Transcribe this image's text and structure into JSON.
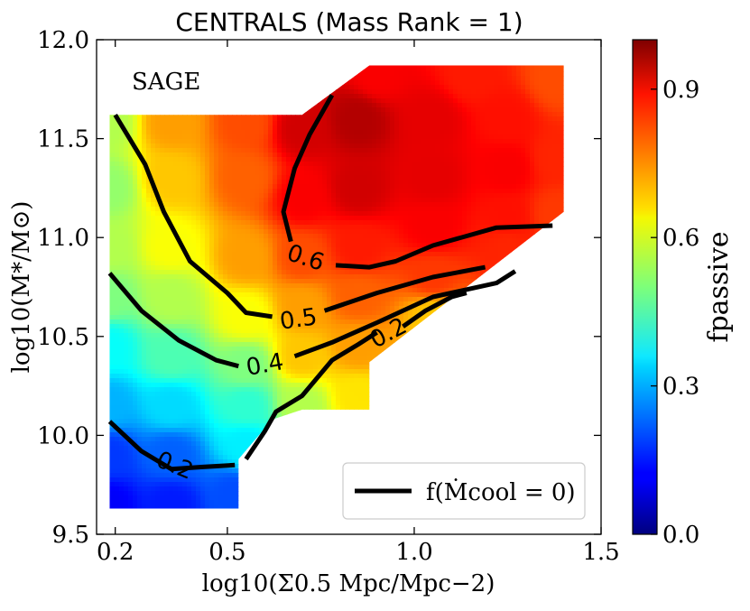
{
  "chart_data": {
    "type": "heatmap",
    "title": "CENTRALS (Mass Rank = 1)",
    "annotation": "SAGE",
    "xlabel": "log10(Σ0.5 Mpc/Mpc−2)",
    "ylabel": "log10(M*/M⊙)",
    "colorbar_label": "fpassive",
    "xlim": [
      0.15,
      1.5
    ],
    "ylim": [
      9.5,
      12.0
    ],
    "x_ticks": [
      0.2,
      0.5,
      1.0,
      1.5
    ],
    "x_tick_labels": [
      "0.2",
      "0.5",
      "1.0",
      "1.5"
    ],
    "y_ticks": [
      9.5,
      10.0,
      10.5,
      11.0,
      11.5,
      12.0
    ],
    "y_tick_labels": [
      "9.5",
      "10.0",
      "10.5",
      "11.0",
      "11.5",
      "12.0"
    ],
    "colorbar_range": [
      0.0,
      1.0
    ],
    "colorbar_ticks": [
      0.0,
      0.3,
      0.6,
      0.9
    ],
    "colorbar_tick_labels": [
      "0.0",
      "0.3",
      "0.6",
      "0.9"
    ],
    "colormap": "jet",
    "field_points": [
      {
        "x": 0.18,
        "y": 9.65,
        "v": 0.12
      },
      {
        "x": 0.35,
        "y": 9.65,
        "v": 0.15
      },
      {
        "x": 0.52,
        "y": 9.7,
        "v": 0.2
      },
      {
        "x": 0.18,
        "y": 9.9,
        "v": 0.18
      },
      {
        "x": 0.35,
        "y": 9.9,
        "v": 0.22
      },
      {
        "x": 0.55,
        "y": 9.95,
        "v": 0.36
      },
      {
        "x": 0.18,
        "y": 10.15,
        "v": 0.3
      },
      {
        "x": 0.35,
        "y": 10.15,
        "v": 0.34
      },
      {
        "x": 0.55,
        "y": 10.15,
        "v": 0.42
      },
      {
        "x": 0.18,
        "y": 10.45,
        "v": 0.38
      },
      {
        "x": 0.35,
        "y": 10.4,
        "v": 0.45
      },
      {
        "x": 0.55,
        "y": 10.35,
        "v": 0.5
      },
      {
        "x": 0.18,
        "y": 10.7,
        "v": 0.5
      },
      {
        "x": 0.35,
        "y": 10.7,
        "v": 0.55
      },
      {
        "x": 0.55,
        "y": 10.6,
        "v": 0.62
      },
      {
        "x": 0.18,
        "y": 10.95,
        "v": 0.55
      },
      {
        "x": 0.35,
        "y": 10.95,
        "v": 0.62
      },
      {
        "x": 0.55,
        "y": 10.9,
        "v": 0.72
      },
      {
        "x": 0.18,
        "y": 11.25,
        "v": 0.52
      },
      {
        "x": 0.35,
        "y": 11.3,
        "v": 0.68
      },
      {
        "x": 0.55,
        "y": 11.3,
        "v": 0.78
      },
      {
        "x": 0.18,
        "y": 11.58,
        "v": 0.55
      },
      {
        "x": 0.35,
        "y": 11.58,
        "v": 0.72
      },
      {
        "x": 0.55,
        "y": 11.58,
        "v": 0.8
      },
      {
        "x": 0.7,
        "y": 10.15,
        "v": 0.55
      },
      {
        "x": 0.85,
        "y": 10.2,
        "v": 0.65
      },
      {
        "x": 0.7,
        "y": 10.4,
        "v": 0.68
      },
      {
        "x": 0.85,
        "y": 10.45,
        "v": 0.72
      },
      {
        "x": 1.05,
        "y": 10.6,
        "v": 0.68
      },
      {
        "x": 0.7,
        "y": 10.65,
        "v": 0.72
      },
      {
        "x": 0.85,
        "y": 10.7,
        "v": 0.78
      },
      {
        "x": 1.05,
        "y": 10.8,
        "v": 0.82
      },
      {
        "x": 1.25,
        "y": 10.95,
        "v": 0.84
      },
      {
        "x": 0.7,
        "y": 10.9,
        "v": 0.8
      },
      {
        "x": 0.85,
        "y": 10.95,
        "v": 0.85
      },
      {
        "x": 1.05,
        "y": 11.05,
        "v": 0.88
      },
      {
        "x": 1.25,
        "y": 11.1,
        "v": 0.86
      },
      {
        "x": 1.38,
        "y": 11.12,
        "v": 0.82
      },
      {
        "x": 0.7,
        "y": 11.2,
        "v": 0.88
      },
      {
        "x": 0.85,
        "y": 11.25,
        "v": 0.92
      },
      {
        "x": 1.05,
        "y": 11.3,
        "v": 0.9
      },
      {
        "x": 1.25,
        "y": 11.35,
        "v": 0.88
      },
      {
        "x": 1.38,
        "y": 11.4,
        "v": 0.84
      },
      {
        "x": 0.7,
        "y": 11.55,
        "v": 0.92
      },
      {
        "x": 0.85,
        "y": 11.6,
        "v": 0.95
      },
      {
        "x": 1.05,
        "y": 11.6,
        "v": 0.9
      },
      {
        "x": 1.25,
        "y": 11.6,
        "v": 0.86
      },
      {
        "x": 1.38,
        "y": 11.8,
        "v": 0.8
      },
      {
        "x": 0.9,
        "y": 11.82,
        "v": 0.88
      },
      {
        "x": 1.15,
        "y": 11.82,
        "v": 0.85
      }
    ],
    "covered_region": [
      [
        0.185,
        9.63
      ],
      [
        0.53,
        9.63
      ],
      [
        0.53,
        9.88
      ],
      [
        0.62,
        10.08
      ],
      [
        0.7,
        10.13
      ],
      [
        0.88,
        10.13
      ],
      [
        0.88,
        10.37
      ],
      [
        1.4,
        11.13
      ],
      [
        1.4,
        11.87
      ],
      [
        0.88,
        11.87
      ],
      [
        0.7,
        11.62
      ],
      [
        0.185,
        11.62
      ]
    ],
    "contours": [
      {
        "label": "0.2",
        "segments": [
          [
            [
              0.185,
              10.07
            ],
            [
              0.27,
              9.92
            ],
            [
              0.35,
              9.83
            ],
            [
              0.43,
              9.84
            ],
            [
              0.52,
              9.85
            ]
          ],
          [
            [
              0.55,
              9.88
            ],
            [
              0.6,
              10.02
            ],
            [
              0.63,
              10.12
            ],
            [
              0.7,
              10.2
            ],
            [
              0.78,
              10.38
            ],
            [
              0.85,
              10.46
            ],
            [
              0.9,
              10.52
            ]
          ],
          [
            [
              0.97,
              10.55
            ],
            [
              1.03,
              10.63
            ],
            [
              1.1,
              10.7
            ],
            [
              1.14,
              10.72
            ]
          ]
        ],
        "label_x": 0.93,
        "label_y": 10.52
      },
      {
        "label": "0.4",
        "segments": [
          [
            [
              0.185,
              10.82
            ],
            [
              0.27,
              10.63
            ],
            [
              0.37,
              10.48
            ],
            [
              0.47,
              10.38
            ],
            [
              0.53,
              10.35
            ]
          ],
          [
            [
              0.68,
              10.4
            ],
            [
              0.78,
              10.47
            ],
            [
              0.9,
              10.57
            ],
            [
              1.05,
              10.7
            ],
            [
              1.22,
              10.77
            ],
            [
              1.27,
              10.83
            ]
          ]
        ],
        "label_x": 0.6,
        "label_y": 10.36
      },
      {
        "label": "0.5",
        "segments": [
          [
            [
              0.2,
              11.62
            ],
            [
              0.28,
              11.37
            ],
            [
              0.33,
              11.13
            ],
            [
              0.4,
              10.88
            ],
            [
              0.5,
              10.72
            ],
            [
              0.55,
              10.62
            ],
            [
              0.62,
              10.6
            ]
          ],
          [
            [
              0.76,
              10.63
            ],
            [
              0.9,
              10.72
            ],
            [
              1.05,
              10.8
            ],
            [
              1.19,
              10.85
            ]
          ]
        ],
        "label_x": 0.69,
        "label_y": 10.59
      },
      {
        "label": "0.6",
        "segments": [
          [
            [
              0.78,
              11.72
            ],
            [
              0.72,
              11.52
            ],
            [
              0.68,
              11.35
            ],
            [
              0.65,
              11.13
            ],
            [
              0.67,
              10.98
            ]
          ],
          [
            [
              0.79,
              10.86
            ],
            [
              0.88,
              10.85
            ],
            [
              0.95,
              10.88
            ],
            [
              1.05,
              10.96
            ],
            [
              1.22,
              11.05
            ],
            [
              1.37,
              11.06
            ]
          ]
        ],
        "label_x": 0.71,
        "label_y": 10.9
      }
    ],
    "legend": {
      "label": "f(Ṁcool = 0)",
      "position": "lower-right"
    },
    "grid": false
  }
}
